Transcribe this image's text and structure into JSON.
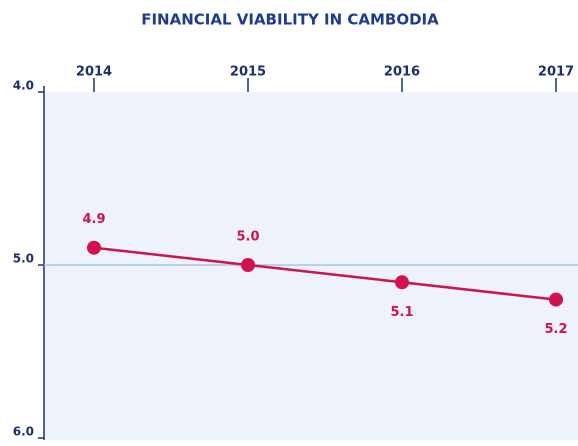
{
  "chart_data": {
    "type": "line",
    "title": "FINANCIAL VIABILITY IN CAMBODIA",
    "categories": [
      "2014",
      "2015",
      "2016",
      "2017"
    ],
    "series": [
      {
        "name": "Financial Viability",
        "color": "#d1124d",
        "values": [
          4.9,
          5.0,
          5.1,
          5.2
        ],
        "value_labels": [
          "4.9",
          "5.0",
          "5.1",
          "5.2"
        ]
      }
    ],
    "ylim": [
      4,
      6
    ],
    "y_inverted": true,
    "yticks": [
      {
        "value": 4,
        "label": "4.0"
      },
      {
        "value": 5,
        "label": "5.0"
      },
      {
        "value": 6,
        "label": "6.0"
      }
    ],
    "grid": true
  }
}
